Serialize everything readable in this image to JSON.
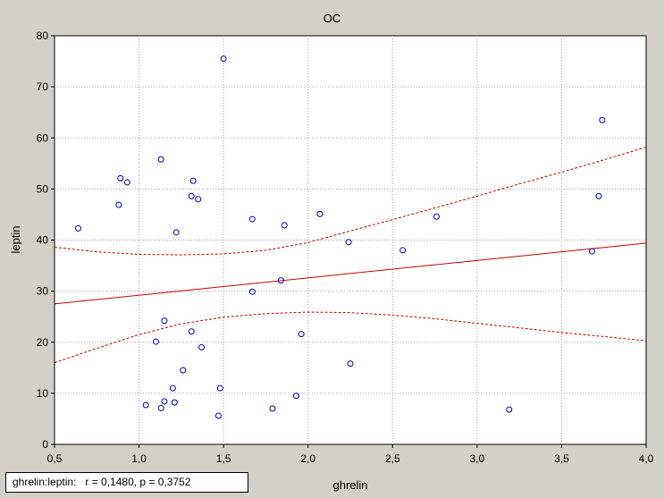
{
  "chart_data": {
    "type": "scatter",
    "title": "OC",
    "xlabel": "ghrelin",
    "ylabel": "leptin",
    "xlim": [
      0.5,
      4.0
    ],
    "ylim": [
      0,
      80
    ],
    "x_ticks": [
      "0,5",
      "1,0",
      "1,5",
      "2,0",
      "2,5",
      "3,0",
      "3,5",
      "4,0"
    ],
    "y_ticks": [
      "0",
      "10",
      "20",
      "30",
      "40",
      "50",
      "60",
      "70",
      "80"
    ],
    "grid": true,
    "points": [
      {
        "x": 0.64,
        "y": 42.3
      },
      {
        "x": 0.88,
        "y": 46.9
      },
      {
        "x": 0.89,
        "y": 52.1
      },
      {
        "x": 0.93,
        "y": 51.3
      },
      {
        "x": 1.04,
        "y": 7.7
      },
      {
        "x": 1.1,
        "y": 20.1
      },
      {
        "x": 1.13,
        "y": 55.8
      },
      {
        "x": 1.13,
        "y": 7.1
      },
      {
        "x": 1.15,
        "y": 24.2
      },
      {
        "x": 1.15,
        "y": 8.4
      },
      {
        "x": 1.2,
        "y": 11.0
      },
      {
        "x": 1.21,
        "y": 8.2
      },
      {
        "x": 1.22,
        "y": 41.5
      },
      {
        "x": 1.26,
        "y": 14.5
      },
      {
        "x": 1.31,
        "y": 48.6
      },
      {
        "x": 1.31,
        "y": 22.1
      },
      {
        "x": 1.32,
        "y": 51.6
      },
      {
        "x": 1.35,
        "y": 48.0
      },
      {
        "x": 1.37,
        "y": 19.0
      },
      {
        "x": 1.47,
        "y": 5.6
      },
      {
        "x": 1.48,
        "y": 11.0
      },
      {
        "x": 1.5,
        "y": 75.5
      },
      {
        "x": 1.67,
        "y": 44.1
      },
      {
        "x": 1.67,
        "y": 29.9
      },
      {
        "x": 1.79,
        "y": 7.0
      },
      {
        "x": 1.84,
        "y": 32.1
      },
      {
        "x": 1.86,
        "y": 42.9
      },
      {
        "x": 1.93,
        "y": 9.5
      },
      {
        "x": 1.96,
        "y": 21.6
      },
      {
        "x": 2.07,
        "y": 45.1
      },
      {
        "x": 2.24,
        "y": 39.6
      },
      {
        "x": 2.25,
        "y": 15.8
      },
      {
        "x": 2.56,
        "y": 38.0
      },
      {
        "x": 2.76,
        "y": 44.6
      },
      {
        "x": 3.19,
        "y": 6.8
      },
      {
        "x": 3.68,
        "y": 37.8
      },
      {
        "x": 3.72,
        "y": 48.6
      },
      {
        "x": 3.74,
        "y": 63.5
      }
    ],
    "regression_line": {
      "x": [
        0.5,
        4.0
      ],
      "y": [
        27.5,
        39.4
      ]
    },
    "confidence_band_upper": {
      "x": [
        0.5,
        0.75,
        1.0,
        1.25,
        1.5,
        1.75,
        2.0,
        2.25,
        2.5,
        2.75,
        3.0,
        3.25,
        3.5,
        3.75,
        4.0
      ],
      "y": [
        38.6,
        37.7,
        37.2,
        37.1,
        37.3,
        38.0,
        39.5,
        41.8,
        44.0,
        46.3,
        48.6,
        51.0,
        53.3,
        55.7,
        58.2
      ]
    },
    "confidence_band_lower": {
      "x": [
        0.5,
        0.75,
        1.0,
        1.25,
        1.5,
        1.75,
        2.0,
        2.25,
        2.5,
        2.75,
        3.0,
        3.25,
        3.5,
        3.75,
        4.0
      ],
      "y": [
        16.0,
        18.8,
        21.5,
        23.6,
        24.9,
        25.6,
        25.9,
        25.8,
        25.3,
        24.6,
        23.7,
        22.8,
        21.9,
        21.1,
        20.3
      ]
    },
    "colors": {
      "points": "#0000aa",
      "regression": "#cc0000",
      "grid": "#a0a0a0",
      "plot_background": "#ffffff",
      "frame_background": "#d4d0c8"
    },
    "annotation": "ghrelin:leptin:   r = 0,1480, p = 0,3752"
  }
}
